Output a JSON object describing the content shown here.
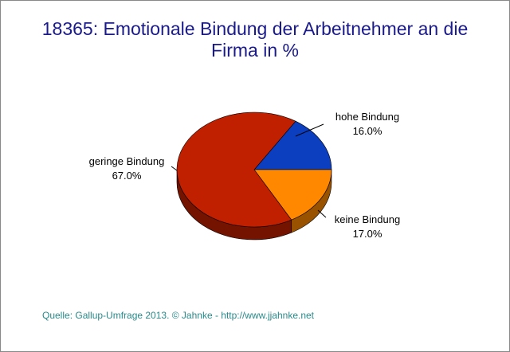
{
  "chart_data": {
    "type": "pie",
    "title": "18365: Emotionale Bindung der Arbeitnehmer an die Firma in %",
    "categories": [
      "hohe Bindung",
      "keine Bindung",
      "geringe Bindung"
    ],
    "values": [
      16,
      17,
      67
    ],
    "value_labels": [
      "16.0%",
      "17.0%",
      "67.0%"
    ],
    "colors": [
      "#0b3fc0",
      "#ff8800",
      "#c02000"
    ],
    "source": "Quelle: Gallup-Umfrage 2013. © Jahnke - http://www.jjahnke.net"
  }
}
